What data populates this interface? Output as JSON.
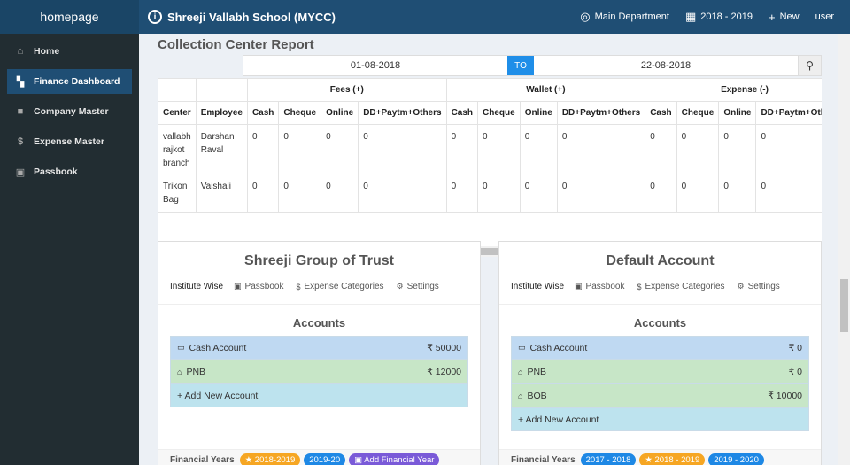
{
  "header": {
    "brand": "homepage",
    "school": "Shreeji Vallabh School (MYCC)",
    "department": "Main Department",
    "year": "2018 - 2019",
    "new_label": "New",
    "user": "user"
  },
  "sidebar": {
    "items": [
      {
        "label": "Home",
        "icon": "home-icon",
        "active": false
      },
      {
        "label": "Finance Dashboard",
        "icon": "dashboard-icon",
        "active": true
      },
      {
        "label": "Company Master",
        "icon": "briefcase-icon",
        "active": false
      },
      {
        "label": "Expense Master",
        "icon": "dollar-icon",
        "active": false
      },
      {
        "label": "Passbook",
        "icon": "passbook-icon",
        "active": false
      }
    ]
  },
  "report": {
    "title": "Collection Center Report",
    "date_from": "01-08-2018",
    "to_label": "TO",
    "date_to": "22-08-2018",
    "groups": [
      "Fees (+)",
      "Wallet (+)",
      "Expense (-)"
    ],
    "col_center": "Center",
    "col_employee": "Employee",
    "sub_cols": [
      "Cash",
      "Cheque",
      "Online",
      "DD+Paytm+Others"
    ],
    "rows": [
      {
        "center": "vallabh rajkot branch",
        "employee": "Darshan Raval",
        "values": [
          "0",
          "0",
          "0",
          "0",
          "0",
          "0",
          "0",
          "0",
          "0",
          "0",
          "0",
          "0"
        ]
      },
      {
        "center": "Trikon Bag",
        "employee": "Vaishali",
        "values": [
          "0",
          "0",
          "0",
          "0",
          "0",
          "0",
          "0",
          "0",
          "0",
          "0",
          "0",
          "0"
        ]
      }
    ]
  },
  "panels": [
    {
      "title": "Shreeji Group of Trust",
      "lead": "Institute Wise",
      "links": [
        "Passbook",
        "Expense Categories",
        "Settings"
      ],
      "accounts_title": "Accounts",
      "accounts": [
        {
          "name": "Cash Account",
          "amount": "₹ 50000",
          "color": "blue"
        },
        {
          "name": "PNB",
          "amount": "₹ 12000",
          "color": "green"
        }
      ],
      "add_label": "+ Add New Account",
      "fy_label": "Financial Years",
      "fy_badges": [
        {
          "label": "★ 2018-2019",
          "color": "orange"
        },
        {
          "label": "2019-20",
          "color": "blue"
        },
        {
          "label": "▣ Add Financial Year",
          "color": "purple"
        }
      ]
    },
    {
      "title": "Default Account",
      "lead": "Institute Wise",
      "links": [
        "Passbook",
        "Expense Categories",
        "Settings"
      ],
      "accounts_title": "Accounts",
      "accounts": [
        {
          "name": "Cash Account",
          "amount": "₹ 0",
          "color": "blue"
        },
        {
          "name": "PNB",
          "amount": "₹ 0",
          "color": "green"
        },
        {
          "name": "BOB",
          "amount": "₹ 10000",
          "color": "green"
        }
      ],
      "add_label": "+ Add New Account",
      "fy_label": "Financial Years",
      "fy_badges": [
        {
          "label": "2017 - 2018",
          "color": "blue"
        },
        {
          "label": "★ 2018 - 2019",
          "color": "orange"
        },
        {
          "label": "2019 - 2020",
          "color": "blue"
        }
      ]
    }
  ]
}
